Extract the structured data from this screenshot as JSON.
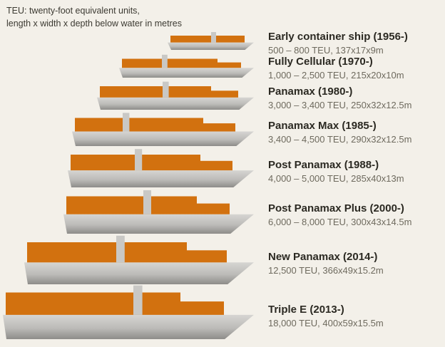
{
  "header": {
    "line1": "TEU: twenty-foot equivalent units,",
    "line2": "length x width x depth below water in metres"
  },
  "colors": {
    "background": "#f3f0e9",
    "hull_light": "#d6d5d2",
    "hull_mid": "#bcbbb8",
    "hull_dark": "#8d8c89",
    "superstructure": "#c9c8c5",
    "container": "#d2710f",
    "header_color": "#3c3a32",
    "name_color": "#2b2922",
    "details_color": "#6e6a5e"
  },
  "ships": [
    {
      "name": "Early container ship (1956-)",
      "details": "500 – 800 TEU, 137x17x9m",
      "length_m": 137
    },
    {
      "name": "Fully Cellular (1970-)",
      "details": "1,000 – 2,500 TEU, 215x20x10m",
      "length_m": 215
    },
    {
      "name": "Panamax (1980-)",
      "details": "3,000 – 3,400 TEU, 250x32x12.5m",
      "length_m": 250
    },
    {
      "name": "Panamax Max (1985-)",
      "details": "3,400 – 4,500 TEU, 290x32x12.5m",
      "length_m": 290
    },
    {
      "name": "Post Panamax (1988-)",
      "details": "4,000 – 5,000 TEU, 285x40x13m",
      "length_m": 285
    },
    {
      "name": "Post Panamax Plus (2000-)",
      "details": "6,000 – 8,000 TEU, 300x43x14.5m",
      "length_m": 300
    },
    {
      "name": "New Panamax (2014-)",
      "details": "12,500 TEU, 366x49x15.2m",
      "length_m": 366
    },
    {
      "name": "Triple E (2013-)",
      "details": "18,000 TEU, 400x59x15.5m",
      "length_m": 400
    }
  ]
}
